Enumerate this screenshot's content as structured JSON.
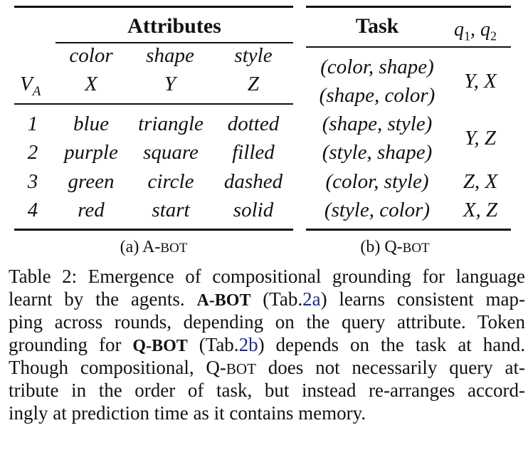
{
  "table_a": {
    "group_header": "Attributes",
    "corner_label": "V",
    "corner_sub": "A",
    "attr_names": [
      "color",
      "shape",
      "style"
    ],
    "token_names": [
      "X",
      "Y",
      "Z"
    ],
    "rows": [
      {
        "id": "1",
        "color": "blue",
        "shape": "triangle",
        "style": "dotted"
      },
      {
        "id": "2",
        "color": "purple",
        "shape": "square",
        "style": "filled"
      },
      {
        "id": "3",
        "color": "green",
        "shape": "circle",
        "style": "dashed"
      },
      {
        "id": "4",
        "color": "red",
        "shape": "start",
        "style": "solid"
      }
    ],
    "caption_prefix": "(a) A-",
    "caption_sc": "BOT"
  },
  "table_b": {
    "task_header": "Task",
    "q_header_q1": "q",
    "q_header_sub1": "1",
    "q_header_sep": ", q",
    "q_header_sub2": "2",
    "tasks": [
      "(color, shape)",
      "(shape, color)",
      "(shape, style)",
      "(style, shape)",
      "(color, style)",
      "(style, color)"
    ],
    "qs": [
      "Y, X",
      "Y, Z",
      "Z, X",
      "X, Z"
    ],
    "caption_prefix": "(b) Q-",
    "caption_sc": "BOT"
  },
  "caption": {
    "line1": "Table 2: Emergence of compositional grounding for language",
    "line2_a": "learnt by the agents.",
    "line2_bot": "A-BOT",
    "line2_b": "(Tab.",
    "line2_ref": "2a",
    "line2_c": ") learns consistent map-",
    "line3": "ping across rounds, depending on the query attribute. Token",
    "line4_a": "grounding for",
    "line4_bot": "Q-BOT",
    "line4_b": "(Tab.",
    "line4_ref": "2b",
    "line4_c": ") depends on the task at hand.",
    "line5_a": "Though compositional, Q-",
    "line5_sc": "BOT",
    "line5_b": "does not necessarily query at-",
    "line6": "tribute in the order of task, but instead re-arranges accord-",
    "line7": "ingly at prediction time as it contains memory."
  }
}
